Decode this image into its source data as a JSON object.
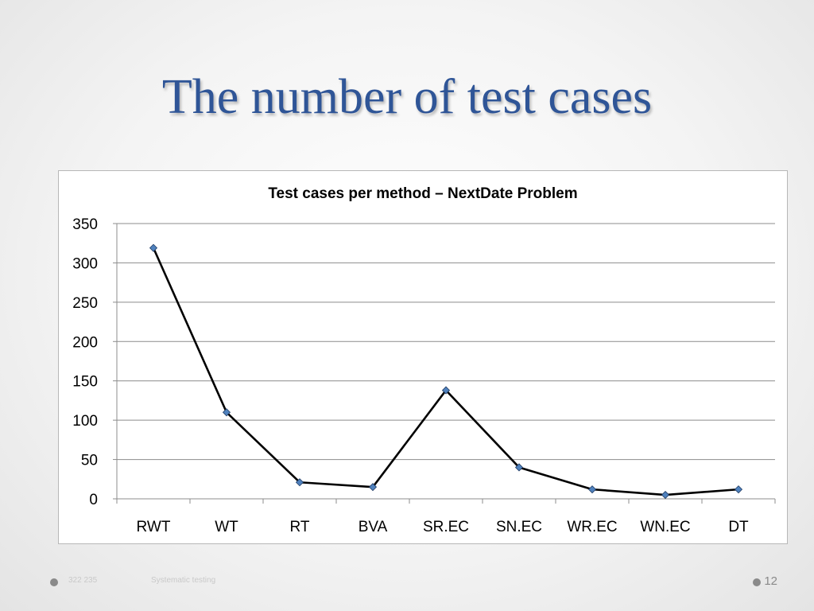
{
  "slide": {
    "title": "The number of test cases",
    "footer_left": "322 235",
    "footer_center": "Systematic testing",
    "page_number": "12"
  },
  "chart_data": {
    "type": "line",
    "title": "Test cases per method – NextDate Problem",
    "categories": [
      "RWT",
      "WT",
      "RT",
      "BVA",
      "SR.EC",
      "SN.EC",
      "WR.EC",
      "WN.EC",
      "DT"
    ],
    "series": [
      {
        "values": [
          319,
          110,
          21,
          15,
          138,
          40,
          12,
          5,
          12
        ],
        "color": "#000000",
        "marker": "diamond",
        "marker_color": "#4f81bd"
      }
    ],
    "ylim": [
      0,
      350
    ],
    "yticks": [
      0,
      50,
      100,
      150,
      200,
      250,
      300,
      350
    ],
    "grid": true,
    "legend": "none",
    "xlabel": "",
    "ylabel": ""
  }
}
